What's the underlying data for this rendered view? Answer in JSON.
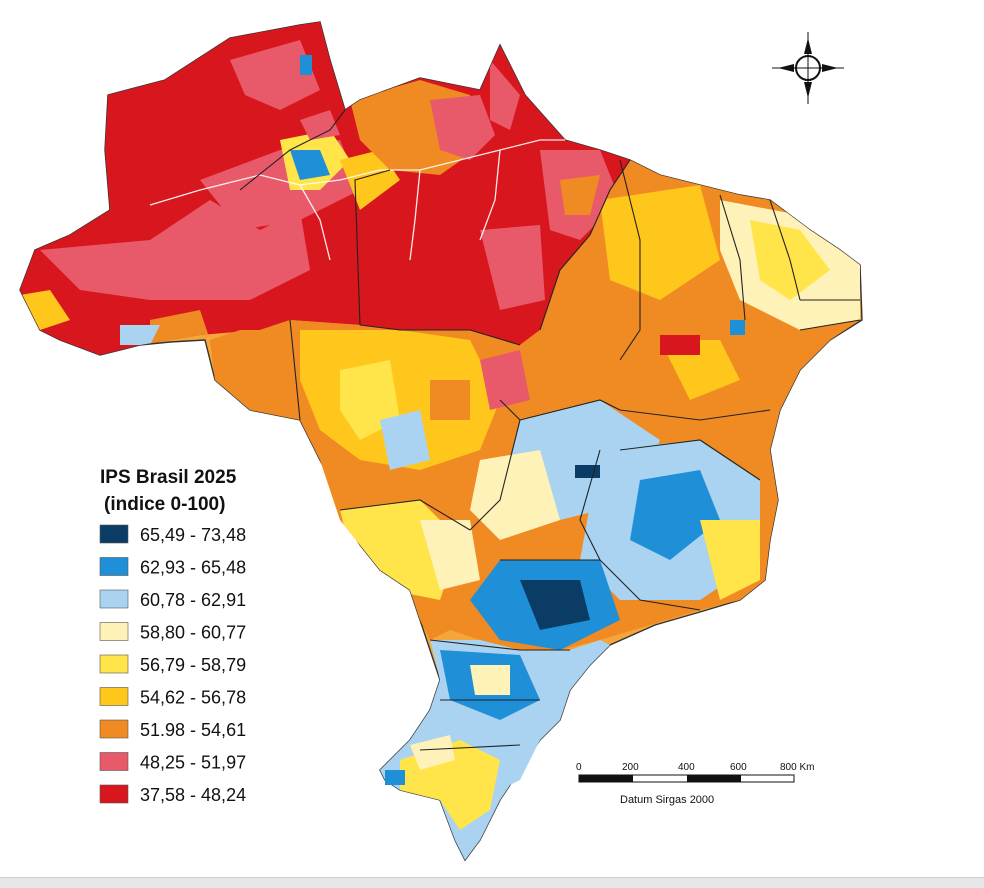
{
  "legend": {
    "title_line1": "IPS Brasil 2025",
    "title_line2": "(indice 0-100)",
    "classes": [
      {
        "label": "65,49 - 73,48",
        "color": "#0b3c66"
      },
      {
        "label": "62,93 - 65,48",
        "color": "#1f8fd8"
      },
      {
        "label": "60,78 - 62,91",
        "color": "#a9d3f0"
      },
      {
        "label": "58,80 - 60,77",
        "color": "#fff2b8"
      },
      {
        "label": "56,79 - 58,79",
        "color": "#ffe44a"
      },
      {
        "label": "54,62 - 56,78",
        "color": "#ffc61c"
      },
      {
        "label": "51.98 - 54,61",
        "color": "#f08a22"
      },
      {
        "label": "48,25 - 51,97",
        "color": "#e85a6a"
      },
      {
        "label": "37,58 - 48,24",
        "color": "#d8161e"
      }
    ]
  },
  "scale_bar": {
    "ticks": [
      "0",
      "200",
      "400",
      "600",
      "800 Km"
    ],
    "datum": "Datum Sirgas 2000"
  },
  "compass": {
    "icon": "north-arrow-compass-icon"
  }
}
